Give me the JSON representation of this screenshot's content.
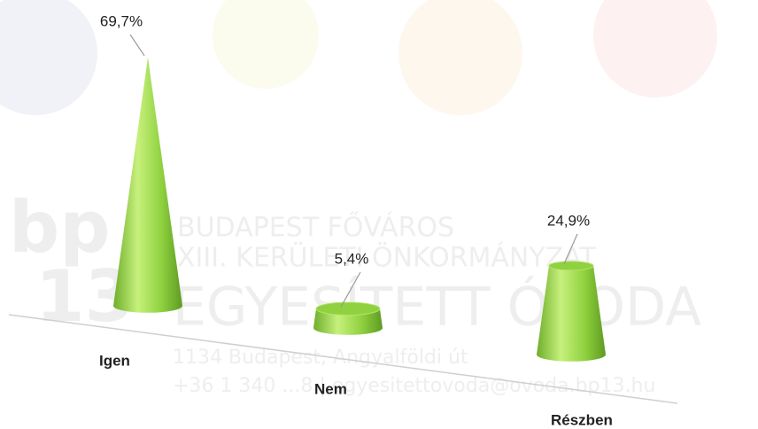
{
  "chart_data": {
    "type": "cone",
    "categories": [
      "Igen",
      "Nem",
      "Részben"
    ],
    "values": [
      69.7,
      5.4,
      24.9
    ],
    "value_labels": [
      "69,7%",
      "5,4%",
      "24,9%"
    ],
    "color": "#8fd13f",
    "watermark": [
      "bp",
      "13",
      "BUDAPEST FŐVÁROS",
      "XIII. KERÜLETI ÖNKORMÁNYZAT",
      "EGYESÍTETT ÓVODA",
      "1134 Budapest, Angyalföldi út",
      "+36 1 340 ...8 | egyesitettovoda@ovoda.bp13.hu"
    ]
  }
}
